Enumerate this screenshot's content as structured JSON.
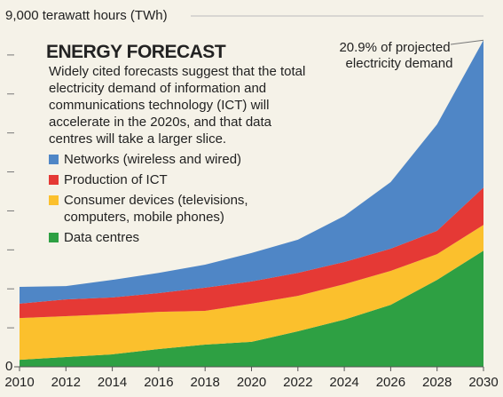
{
  "chart_data": {
    "type": "stacked-area",
    "title": "ENERGY FORECAST",
    "subtitle": "Widely cited forecasts suggest that the total electricity demand of information and communications technology (ICT) will accelerate in the 2020s, and that data centres will take a larger slice.",
    "annotation": "20.9% of projected electricity demand",
    "x": [
      2010,
      2012,
      2014,
      2016,
      2018,
      2020,
      2022,
      2024,
      2026,
      2028,
      2030
    ],
    "series": [
      {
        "name": "Data centres",
        "color": "#2ea043",
        "values": [
          180,
          250,
          320,
          455,
          570,
          640,
          910,
          1210,
          1590,
          2230,
          2980
        ]
      },
      {
        "name": "Consumer devices (televisions, computers, mobile phones)",
        "color": "#fbc02d",
        "values": [
          1070,
          1050,
          1030,
          955,
          865,
          980,
          910,
          910,
          870,
          660,
          660
        ]
      },
      {
        "name": "Production of ICT",
        "color": "#e53935",
        "values": [
          370,
          430,
          430,
          480,
          595,
          570,
          590,
          570,
          570,
          600,
          960
        ]
      },
      {
        "name": "Networks (wireless and wired)",
        "color": "#4f86c6",
        "values": [
          430,
          340,
          450,
          520,
          590,
          730,
          850,
          1180,
          1710,
          2730,
          3780
        ]
      }
    ],
    "xlim": [
      2010,
      2030
    ],
    "xticks": [
      2010,
      2012,
      2014,
      2016,
      2018,
      2020,
      2022,
      2024,
      2026,
      2028,
      2030
    ],
    "ylim": [
      0,
      9000
    ],
    "yticks": [
      0,
      {
        "value": 9000,
        "label": "9,000 terawatt hours (TWh)"
      }
    ],
    "minor_yticks": [
      1000,
      2000,
      3000,
      4000,
      5000,
      6000,
      7000,
      8000
    ]
  }
}
